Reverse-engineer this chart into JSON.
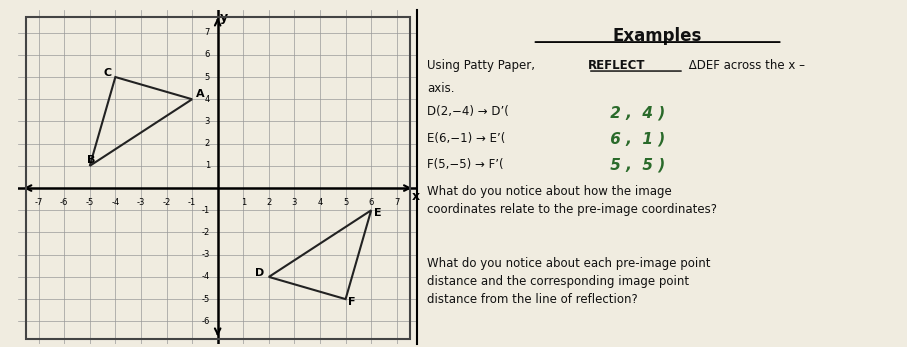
{
  "title": "Examples",
  "bg_color": "#f0ece0",
  "grid_color": "#999999",
  "axis_color": "#000000",
  "xlim": [
    -7.8,
    7.8
  ],
  "ylim": [
    -7,
    8
  ],
  "xticks": [
    -7,
    -6,
    -5,
    -4,
    -3,
    -2,
    -1,
    1,
    2,
    3,
    4,
    5,
    6,
    7
  ],
  "yticks": [
    -6,
    -5,
    -4,
    -3,
    -2,
    -1,
    1,
    2,
    3,
    4,
    5,
    6,
    7
  ],
  "triangle_ABC": {
    "A": [
      -1,
      4
    ],
    "B": [
      -5,
      1
    ],
    "C": [
      -4,
      5
    ],
    "color": "#222222"
  },
  "triangle_DEF": {
    "D": [
      2,
      -4
    ],
    "E": [
      6,
      -1
    ],
    "F": [
      5,
      -5
    ],
    "color": "#222222"
  },
  "handwritten_color": "#2a6a2a",
  "text_color": "#111111",
  "italic_color": "#111111"
}
